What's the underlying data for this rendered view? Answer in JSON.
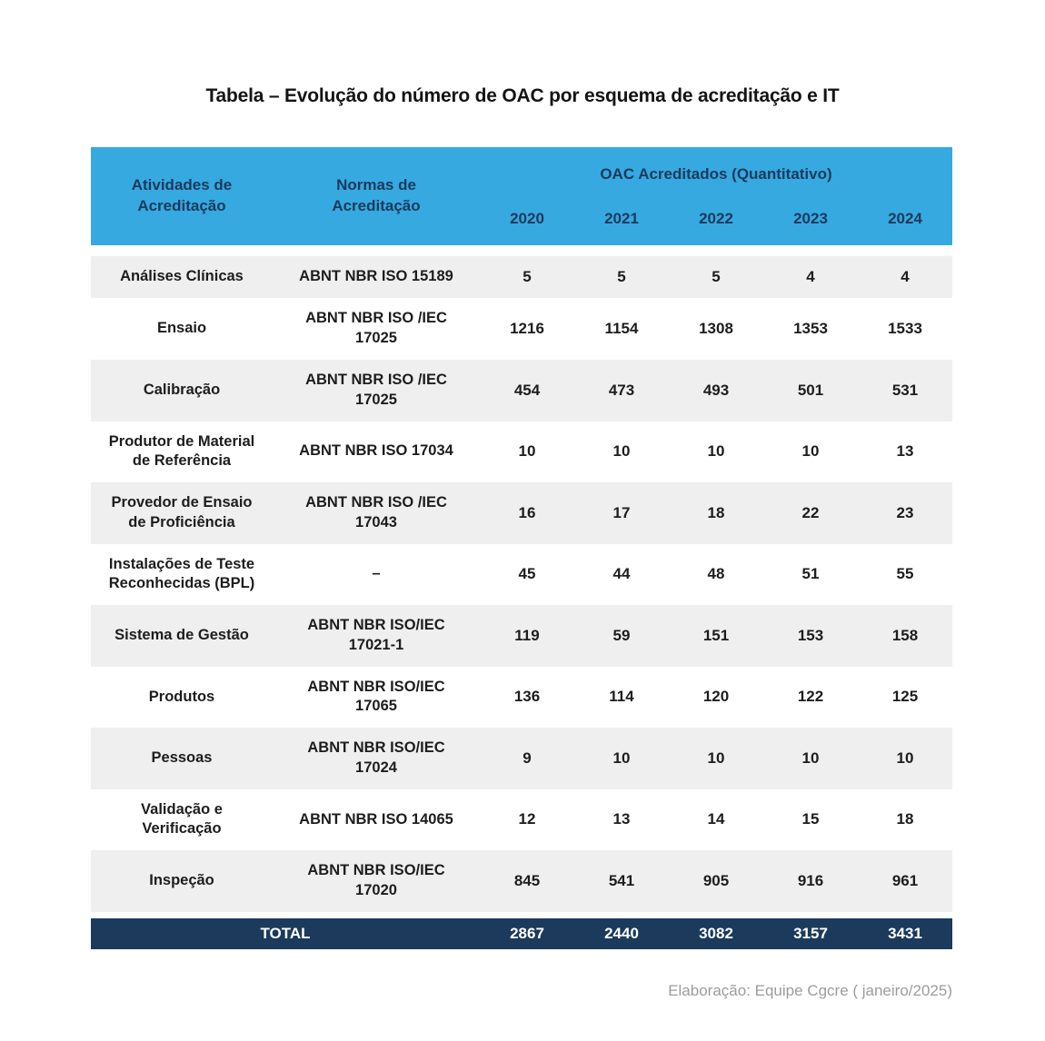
{
  "colors": {
    "header-blue": "#36A9E0",
    "navy": "#1B3A5C",
    "row-alt": "#EFEFEF"
  },
  "chart_data": {
    "type": "table",
    "title": "Tabela – Evolução do número de OAC por esquema de acreditação e IT",
    "header": {
      "col_atividades": "Atividades de Acreditação",
      "col_normas": "Normas de Acreditação",
      "group": "OAC Acreditados (Quantitativo)",
      "years": [
        "2020",
        "2021",
        "2022",
        "2023",
        "2024"
      ]
    },
    "rows": [
      {
        "atividade": "Análises Clínicas",
        "norma": "ABNT NBR ISO 15189",
        "values": [
          5,
          5,
          5,
          4,
          4
        ]
      },
      {
        "atividade": "Ensaio",
        "norma": "ABNT NBR ISO /IEC 17025",
        "values": [
          1216,
          1154,
          1308,
          1353,
          1533
        ]
      },
      {
        "atividade": "Calibração",
        "norma": "ABNT NBR ISO /IEC 17025",
        "values": [
          454,
          473,
          493,
          501,
          531
        ]
      },
      {
        "atividade": "Produtor de Material de Referência",
        "norma": "ABNT NBR ISO 17034",
        "values": [
          10,
          10,
          10,
          10,
          13
        ]
      },
      {
        "atividade": "Provedor de Ensaio de Proficiência",
        "norma": "ABNT NBR ISO /IEC 17043",
        "values": [
          16,
          17,
          18,
          22,
          23
        ]
      },
      {
        "atividade": "Instalações de Teste Reconhecidas (BPL)",
        "norma": "–",
        "values": [
          45,
          44,
          48,
          51,
          55
        ]
      },
      {
        "atividade": "Sistema de Gestão",
        "norma": "ABNT NBR ISO/IEC 17021-1",
        "values": [
          119,
          59,
          151,
          153,
          158
        ]
      },
      {
        "atividade": "Produtos",
        "norma": "ABNT NBR ISO/IEC 17065",
        "values": [
          136,
          114,
          120,
          122,
          125
        ]
      },
      {
        "atividade": "Pessoas",
        "norma": "ABNT NBR ISO/IEC 17024",
        "values": [
          9,
          10,
          10,
          10,
          10
        ]
      },
      {
        "atividade": "Validação e Verificação",
        "norma": "ABNT NBR ISO 14065",
        "values": [
          12,
          13,
          14,
          15,
          18
        ]
      },
      {
        "atividade": "Inspeção",
        "norma": "ABNT NBR ISO/IEC 17020",
        "values": [
          845,
          541,
          905,
          916,
          961
        ]
      }
    ],
    "total": {
      "label": "TOTAL",
      "values": [
        2867,
        2440,
        3082,
        3157,
        3431
      ]
    },
    "footnote": "Elaboração: Equipe Cgcre ( janeiro/2025)"
  }
}
